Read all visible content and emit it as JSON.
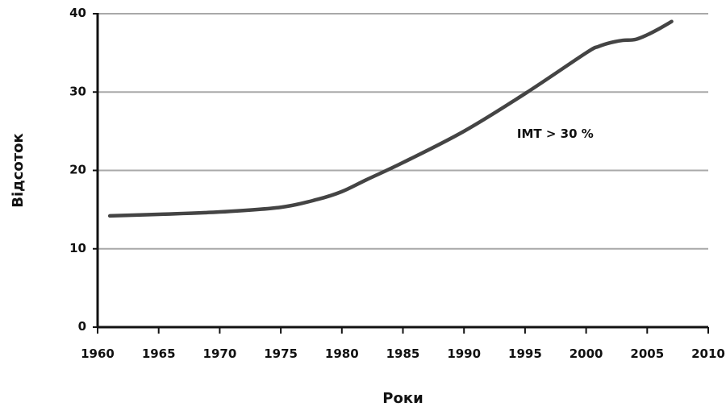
{
  "chart_data": {
    "type": "line",
    "title": "",
    "xlabel": "Роки",
    "ylabel": "Відсоток",
    "xlim": [
      1960,
      2010
    ],
    "ylim": [
      0,
      40
    ],
    "x_ticks": [
      1960,
      1965,
      1970,
      1975,
      1980,
      1985,
      1990,
      1995,
      2000,
      2005,
      2010
    ],
    "y_ticks": [
      0,
      10,
      20,
      30,
      40
    ],
    "grid": "horizontal",
    "legend": "none",
    "annotations": [
      {
        "text": "ІМТ > 30 %",
        "x": 1995,
        "y": 24.7
      }
    ],
    "series": [
      {
        "color": "#444444",
        "points": [
          [
            1961,
            14.2
          ],
          [
            1965,
            14.4
          ],
          [
            1970,
            14.7
          ],
          [
            1975,
            15.3
          ],
          [
            1978,
            16.3
          ],
          [
            1980,
            17.3
          ],
          [
            1982,
            18.8
          ],
          [
            1985,
            21.0
          ],
          [
            1990,
            25.0
          ],
          [
            1995,
            29.8
          ],
          [
            2000,
            35.0
          ],
          [
            2001,
            35.8
          ],
          [
            2002,
            36.3
          ],
          [
            2003,
            36.6
          ],
          [
            2004,
            36.7
          ],
          [
            2005,
            37.3
          ],
          [
            2006,
            38.1
          ],
          [
            2007,
            39.0
          ]
        ]
      }
    ]
  }
}
